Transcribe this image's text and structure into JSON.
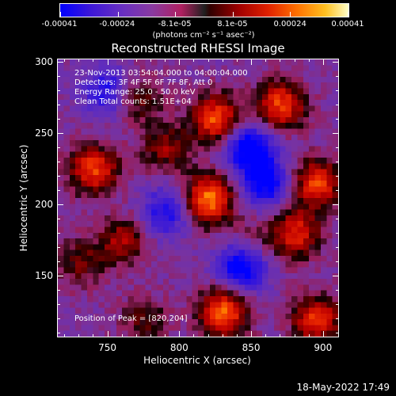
{
  "colorbar": {
    "ticks": [
      "-0.00041",
      "-0.00024",
      "-8.1e-05",
      "8.1e-05",
      "0.00024",
      "0.00041"
    ],
    "units": "(photons cm⁻² s⁻¹ asec⁻²)"
  },
  "info": {
    "time_range": "23-Nov-2013 03:54:04.000 to 04:00:04.000",
    "detectors": "Detectors: 3F 4F 5F 6F 7F 8F, Att 0",
    "energy": "Energy Range: 25.0 - 50.0 keV",
    "clean": "Clean     Total counts: 1.51E+04",
    "peak": "Position of Peak = [820,204]"
  },
  "footer": {
    "date": "18-May-2022 17:49"
  },
  "chart_data": {
    "type": "heatmap",
    "title": "Reconstructed RHESSI Image",
    "xlabel": "Heliocentric X (arcsec)",
    "ylabel": "Heliocentric Y (arcsec)",
    "xlim": [
      715,
      910
    ],
    "ylim": [
      108,
      302
    ],
    "xticks": [
      750,
      800,
      850,
      900
    ],
    "yticks": [
      150,
      200,
      250,
      300
    ],
    "zlim": [
      -0.00041,
      0.00041
    ],
    "grid": false,
    "hot_spots": [
      {
        "x": 820,
        "y": 204,
        "value": 0.00041
      },
      {
        "x": 825,
        "y": 260,
        "value": 0.00036
      },
      {
        "x": 740,
        "y": 225,
        "value": 0.00034
      },
      {
        "x": 830,
        "y": 125,
        "value": 0.00038
      },
      {
        "x": 870,
        "y": 270,
        "value": 0.00034
      },
      {
        "x": 895,
        "y": 215,
        "value": 0.00034
      },
      {
        "x": 760,
        "y": 175,
        "value": 0.00022
      },
      {
        "x": 880,
        "y": 180,
        "value": 0.0003
      },
      {
        "x": 730,
        "y": 160,
        "value": 0.00016
      },
      {
        "x": 895,
        "y": 120,
        "value": 0.00032
      },
      {
        "x": 770,
        "y": 275,
        "value": 0.00018
      },
      {
        "x": 790,
        "y": 240,
        "value": 0.0002
      },
      {
        "x": 850,
        "y": 175,
        "value": 0.0001
      },
      {
        "x": 775,
        "y": 120,
        "value": 0.00014
      }
    ],
    "cold_spots": [
      {
        "x": 848,
        "y": 240,
        "value": -0.00036
      },
      {
        "x": 843,
        "y": 157,
        "value": -0.00034
      },
      {
        "x": 790,
        "y": 195,
        "value": -0.00024
      },
      {
        "x": 860,
        "y": 215,
        "value": -0.0003
      },
      {
        "x": 750,
        "y": 280,
        "value": -0.00024
      }
    ]
  }
}
